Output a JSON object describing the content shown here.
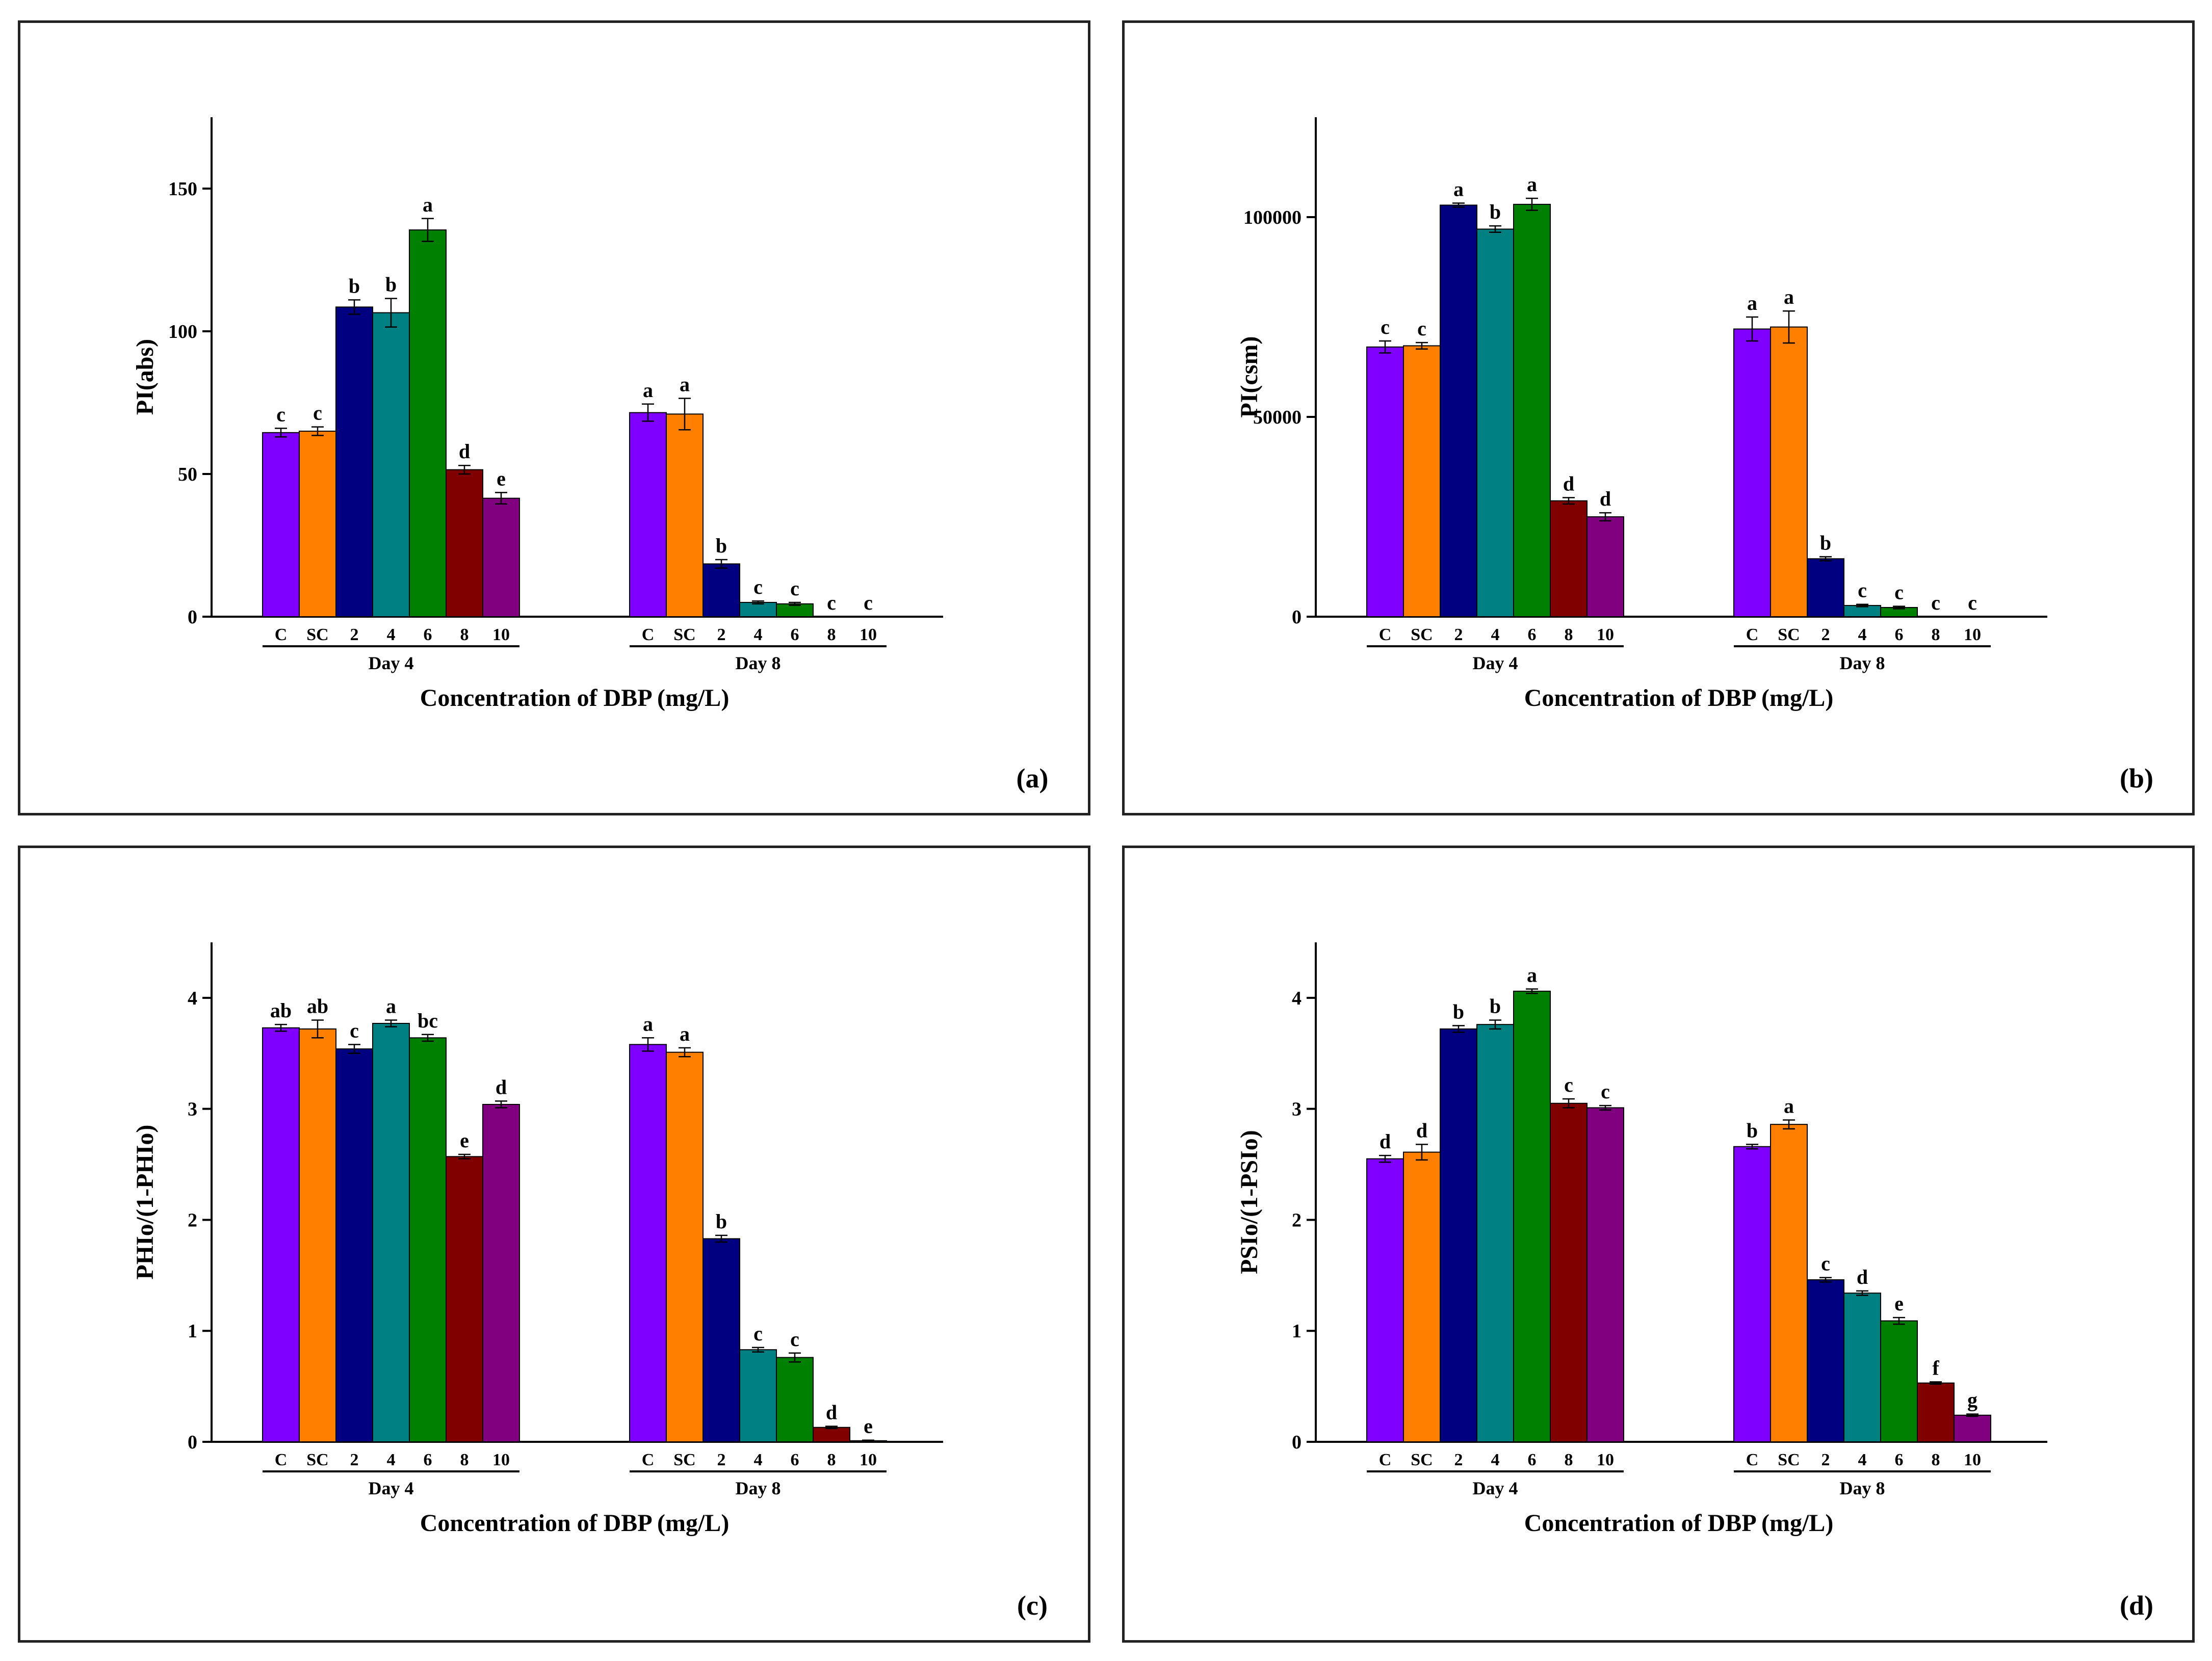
{
  "chart_data": [
    {
      "type": "bar",
      "panel_label": "(a)",
      "ylabel": "PI(abs)",
      "xlabel": "Concentration of DBP (mg/L)",
      "ylim": [
        0,
        175
      ],
      "yticks": [
        "0",
        "50",
        "100",
        "150"
      ],
      "ytick_values": [
        0,
        50,
        100,
        150
      ],
      "groups": [
        {
          "name": "Day 4",
          "categories": [
            "C",
            "SC",
            "2",
            "4",
            "6",
            "8",
            "10"
          ],
          "values": [
            64.5,
            65,
            108.5,
            106.5,
            135.5,
            51.5,
            41.5
          ],
          "errors": [
            1.5,
            1.5,
            2.5,
            5,
            4,
            1.5,
            2
          ],
          "letters": [
            "c",
            "c",
            "b",
            "b",
            "a",
            "d",
            "e"
          ]
        },
        {
          "name": "Day 8",
          "categories": [
            "C",
            "SC",
            "2",
            "4",
            "6",
            "8",
            "10"
          ],
          "values": [
            71.5,
            71,
            18.5,
            5,
            4.5,
            0,
            0
          ],
          "errors": [
            3,
            5.5,
            1.5,
            0.5,
            0.5,
            0,
            0
          ],
          "letters": [
            "a",
            "a",
            "b",
            "c",
            "c",
            "c",
            "c"
          ]
        }
      ]
    },
    {
      "type": "bar",
      "panel_label": "(b)",
      "ylabel": "PI(csm)",
      "xlabel": "Concentration of DBP (mg/L)",
      "ylim": [
        0,
        125000
      ],
      "yticks": [
        "0",
        "50000",
        "100000"
      ],
      "ytick_values": [
        0,
        50000,
        100000
      ],
      "groups": [
        {
          "name": "Day 4",
          "categories": [
            "C",
            "SC",
            "2",
            "4",
            "6",
            "8",
            "10"
          ],
          "values": [
            67500,
            67800,
            103000,
            97000,
            103200,
            29000,
            25000
          ],
          "errors": [
            1500,
            800,
            500,
            800,
            1500,
            800,
            1000
          ],
          "letters": [
            "c",
            "c",
            "a",
            "b",
            "a",
            "d",
            "d"
          ]
        },
        {
          "name": "Day 8",
          "categories": [
            "C",
            "SC",
            "2",
            "4",
            "6",
            "8",
            "10"
          ],
          "values": [
            72000,
            72500,
            14500,
            2800,
            2300,
            0,
            0
          ],
          "errors": [
            3000,
            4000,
            500,
            300,
            300,
            0,
            0
          ],
          "letters": [
            "a",
            "a",
            "b",
            "c",
            "c",
            "c",
            "c"
          ]
        }
      ]
    },
    {
      "type": "bar",
      "panel_label": "(c)",
      "ylabel": "PHIo/(1-PHIo)",
      "xlabel": "Concentration of DBP (mg/L)",
      "ylim": [
        0,
        4.5
      ],
      "yticks": [
        "0",
        "1",
        "2",
        "3",
        "4"
      ],
      "ytick_values": [
        0,
        1,
        2,
        3,
        4
      ],
      "groups": [
        {
          "name": "Day 4",
          "categories": [
            "C",
            "SC",
            "2",
            "4",
            "6",
            "8",
            "10"
          ],
          "values": [
            3.73,
            3.72,
            3.54,
            3.77,
            3.64,
            2.57,
            3.04
          ],
          "errors": [
            0.03,
            0.08,
            0.04,
            0.03,
            0.03,
            0.02,
            0.03
          ],
          "letters": [
            "ab",
            "ab",
            "c",
            "a",
            "bc",
            "e",
            "d"
          ]
        },
        {
          "name": "Day 8",
          "categories": [
            "C",
            "SC",
            "2",
            "4",
            "6",
            "8",
            "10"
          ],
          "values": [
            3.58,
            3.51,
            1.83,
            0.83,
            0.76,
            0.13,
            0.01
          ],
          "errors": [
            0.06,
            0.04,
            0.03,
            0.02,
            0.04,
            0.01,
            0.005
          ],
          "letters": [
            "a",
            "a",
            "b",
            "c",
            "c",
            "d",
            "e"
          ]
        }
      ]
    },
    {
      "type": "bar",
      "panel_label": "(d)",
      "ylabel": "PSIo/(1-PSIo)",
      "xlabel": "Concentration of DBP (mg/L)",
      "ylim": [
        0,
        4.5
      ],
      "yticks": [
        "0",
        "1",
        "2",
        "3",
        "4"
      ],
      "ytick_values": [
        0,
        1,
        2,
        3,
        4
      ],
      "groups": [
        {
          "name": "Day 4",
          "categories": [
            "C",
            "SC",
            "2",
            "4",
            "6",
            "8",
            "10"
          ],
          "values": [
            2.55,
            2.61,
            3.72,
            3.76,
            4.06,
            3.05,
            3.01
          ],
          "errors": [
            0.03,
            0.07,
            0.03,
            0.04,
            0.02,
            0.04,
            0.02
          ],
          "letters": [
            "d",
            "d",
            "b",
            "b",
            "a",
            "c",
            "c"
          ]
        },
        {
          "name": "Day 8",
          "categories": [
            "C",
            "SC",
            "2",
            "4",
            "6",
            "8",
            "10"
          ],
          "values": [
            2.66,
            2.86,
            1.46,
            1.34,
            1.09,
            0.53,
            0.24
          ],
          "errors": [
            0.02,
            0.04,
            0.02,
            0.02,
            0.03,
            0.01,
            0.01
          ],
          "letters": [
            "b",
            "a",
            "c",
            "d",
            "e",
            "f",
            "g"
          ]
        }
      ]
    }
  ],
  "colors": [
    "#8000ff",
    "#ff8000",
    "#000080",
    "#008080",
    "#008000",
    "#800000",
    "#800080"
  ]
}
